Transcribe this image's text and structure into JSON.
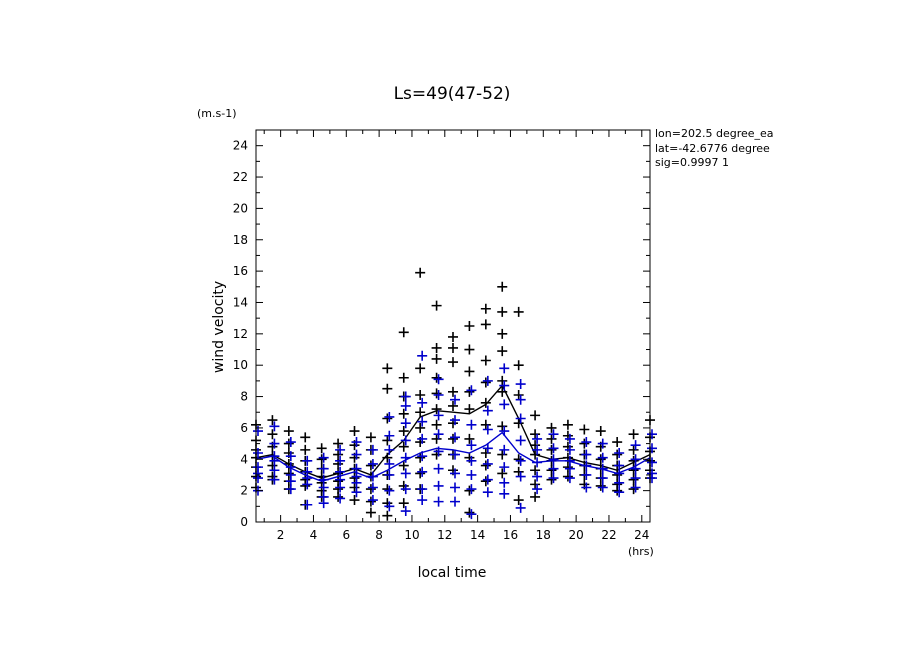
{
  "chart_data": {
    "type": "scatter",
    "title": "Ls=49(47-52)",
    "xlabel": "local time",
    "ylabel": "wind velocity",
    "y_unit": "(m.s-1)",
    "x_unit": "(hrs)",
    "xlim": [
      0.5,
      24.5
    ],
    "ylim": [
      0,
      25
    ],
    "x_ticks": [
      2,
      4,
      6,
      8,
      10,
      12,
      14,
      16,
      18,
      20,
      22,
      24
    ],
    "y_ticks": [
      0,
      2,
      4,
      6,
      8,
      10,
      12,
      14,
      16,
      18,
      20,
      22,
      24
    ],
    "annotations": [
      "lon=202.5 degree_ea",
      "lat=-42.6776 degree",
      "sig=0.9997 1"
    ],
    "colors": {
      "series1": "#000000",
      "series2": "#0000cc"
    },
    "x": [
      0.5,
      1.5,
      2.5,
      3.5,
      4.5,
      5.5,
      6.5,
      7.5,
      8.5,
      9.5,
      10.5,
      11.5,
      12.5,
      13.5,
      14.5,
      15.5,
      16.5,
      17.5,
      18.5,
      19.5,
      20.5,
      21.5,
      22.5,
      23.5,
      24.5
    ],
    "series": [
      {
        "color": "#000000",
        "mean": [
          4.1,
          4.3,
          3.7,
          3.2,
          2.8,
          3.1,
          3.4,
          3.0,
          4.3,
          5.2,
          6.7,
          7.1,
          7.0,
          6.9,
          7.5,
          8.7,
          6.6,
          4.3,
          4.0,
          4.1,
          3.8,
          3.6,
          3.3,
          3.8,
          4.3
        ],
        "points": [
          [
            6.2,
            5.2,
            4.6,
            4.1,
            3.5,
            2.9,
            2.2
          ],
          [
            6.5,
            5.6,
            4.8,
            4.2,
            3.6,
            2.9,
            2.7
          ],
          [
            5.8,
            5.0,
            4.4,
            3.7,
            3.1,
            2.6,
            2.1
          ],
          [
            5.4,
            4.6,
            3.9,
            3.2,
            2.7,
            2.3,
            1.1
          ],
          [
            4.7,
            4.0,
            3.4,
            2.9,
            2.5,
            2.0,
            1.6
          ],
          [
            5.0,
            4.3,
            3.7,
            3.1,
            2.6,
            2.1,
            1.6
          ],
          [
            5.8,
            4.9,
            4.1,
            3.4,
            2.8,
            2.2,
            1.4
          ],
          [
            5.4,
            4.6,
            3.6,
            2.9,
            2.1,
            1.3,
            0.6
          ],
          [
            9.8,
            8.5,
            6.6,
            5.2,
            4.1,
            3.0,
            2.1,
            1.2,
            0.4
          ],
          [
            12.1,
            9.2,
            8.0,
            6.9,
            5.8,
            4.8,
            3.6,
            2.3,
            1.2
          ],
          [
            15.9,
            9.8,
            8.1,
            7.0,
            6.0,
            5.1,
            4.1,
            3.1,
            2.1
          ],
          [
            13.8,
            11.1,
            10.4,
            9.2,
            8.2,
            7.2,
            6.2,
            5.3,
            4.3
          ],
          [
            11.8,
            11.1,
            10.2,
            8.3,
            7.4,
            6.3,
            5.3,
            4.3,
            3.3
          ],
          [
            12.5,
            11.0,
            9.6,
            8.3,
            7.2,
            5.3,
            4.1,
            2.0,
            0.6
          ],
          [
            13.6,
            12.6,
            10.3,
            8.9,
            7.6,
            6.2,
            4.4,
            3.6,
            2.6
          ],
          [
            15.0,
            13.4,
            12.0,
            10.9,
            9.0,
            8.3,
            6.1,
            4.3,
            3.1
          ],
          [
            13.4,
            10.0,
            8.1,
            6.3,
            4.0,
            3.2,
            1.4
          ],
          [
            6.8,
            5.6,
            4.9,
            4.3,
            3.3,
            2.4,
            1.6
          ],
          [
            6.0,
            5.3,
            4.6,
            3.9,
            3.3,
            2.7
          ],
          [
            6.2,
            5.5,
            4.8,
            4.1,
            3.5,
            2.9
          ],
          [
            5.9,
            5.0,
            4.3,
            3.6,
            3.0,
            2.4
          ],
          [
            5.8,
            4.8,
            4.0,
            3.4,
            2.8,
            2.3
          ],
          [
            5.1,
            4.3,
            3.6,
            3.0,
            2.4,
            2.0
          ],
          [
            5.6,
            4.6,
            3.9,
            3.3,
            2.7,
            2.1
          ],
          [
            6.5,
            5.4,
            4.5,
            3.9,
            3.3,
            2.8
          ]
        ]
      },
      {
        "color": "#0000cc",
        "mean": [
          4.0,
          4.2,
          3.5,
          3.0,
          2.6,
          2.9,
          3.2,
          2.8,
          3.3,
          3.9,
          4.4,
          4.7,
          4.6,
          4.4,
          4.9,
          5.7,
          4.4,
          3.8,
          3.9,
          3.9,
          3.6,
          3.4,
          3.1,
          3.5,
          4.1
        ],
        "points": [
          [
            5.8,
            4.4,
            3.5,
            3.1,
            2.8,
            2.0
          ],
          [
            6.1,
            5.0,
            4.2,
            3.9,
            3.3,
            2.7
          ],
          [
            5.1,
            4.2,
            3.5,
            3.0,
            2.6,
            2.1
          ],
          [
            3.9,
            3.2,
            2.8,
            2.4,
            1.1
          ],
          [
            4.1,
            3.4,
            2.7,
            2.2,
            1.6,
            1.2
          ],
          [
            4.6,
            3.9,
            3.2,
            2.7,
            2.2,
            1.5
          ],
          [
            5.1,
            4.3,
            3.4,
            2.9,
            2.5,
            1.9
          ],
          [
            4.6,
            3.7,
            2.9,
            2.2,
            1.4
          ],
          [
            6.7,
            5.5,
            4.6,
            3.7,
            3.0,
            2.0,
            1.0
          ],
          [
            8.0,
            7.4,
            6.3,
            5.2,
            4.1,
            3.1,
            2.1,
            0.7
          ],
          [
            10.6,
            7.6,
            6.4,
            5.3,
            4.2,
            3.2,
            2.1,
            1.4
          ],
          [
            9.1,
            8.1,
            6.8,
            5.6,
            4.5,
            3.4,
            2.3,
            1.3
          ],
          [
            7.8,
            6.5,
            5.4,
            4.3,
            3.1,
            2.2,
            1.3
          ],
          [
            8.4,
            6.2,
            4.9,
            3.9,
            3.0,
            2.1,
            0.5
          ],
          [
            9.0,
            7.1,
            5.9,
            4.7,
            3.7,
            2.7,
            1.9
          ],
          [
            9.8,
            8.7,
            7.5,
            5.8,
            4.6,
            3.5,
            2.5,
            1.8
          ],
          [
            8.8,
            7.8,
            6.6,
            5.2,
            3.9,
            2.9,
            0.9
          ],
          [
            5.3,
            4.6,
            3.8,
            2.9,
            2.1
          ],
          [
            5.6,
            4.7,
            4.0,
            3.4,
            2.8
          ],
          [
            5.3,
            4.6,
            3.9,
            3.4,
            2.8
          ],
          [
            5.1,
            4.3,
            3.6,
            3.0,
            2.2
          ],
          [
            5.0,
            4.1,
            3.4,
            2.8,
            2.2
          ],
          [
            4.4,
            3.6,
            3.1,
            2.5,
            1.9
          ],
          [
            4.9,
            4.0,
            3.4,
            2.8,
            2.2
          ],
          [
            5.6,
            4.7,
            3.8,
            3.1,
            2.8
          ]
        ]
      }
    ]
  }
}
